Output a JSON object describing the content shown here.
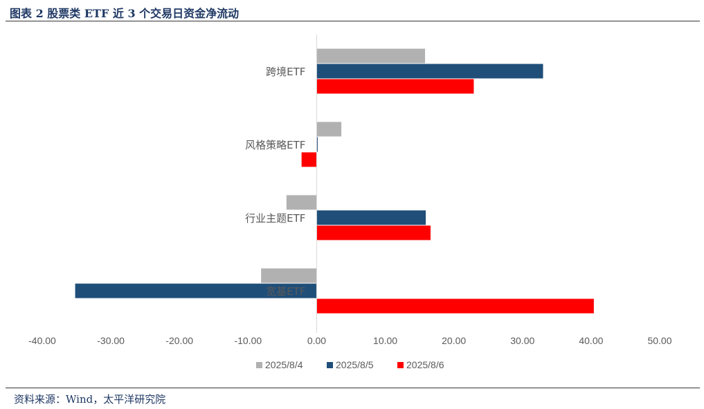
{
  "title": "图表 2  股票类 ETF 近 3 个交易日资金净流动",
  "source": "资料来源：Wind，太平洋研究院",
  "chart_data": {
    "type": "bar",
    "orientation": "horizontal",
    "categories": [
      "跨境ETF",
      "风格策略ETF",
      "行业主题ETF",
      "宽基ETF"
    ],
    "series": [
      {
        "name": "2025/8/4",
        "color": "#b1b1b1",
        "values": [
          15.8,
          3.6,
          -4.4,
          -8.1
        ]
      },
      {
        "name": "2025/8/5",
        "color": "#1f4e79",
        "values": [
          33.0,
          0.15,
          15.9,
          -35.2
        ]
      },
      {
        "name": "2025/8/6",
        "color": "#ff0000",
        "values": [
          22.9,
          -2.2,
          16.6,
          40.4
        ]
      }
    ],
    "xlim": [
      -40,
      50
    ],
    "xticks": [
      "-40.00",
      "-30.00",
      "-20.00",
      "-10.00",
      "0.00",
      "10.00",
      "20.00",
      "30.00",
      "40.00",
      "50.00"
    ],
    "xlabel": "",
    "ylabel": "",
    "grid": false,
    "legend": "bottom"
  }
}
